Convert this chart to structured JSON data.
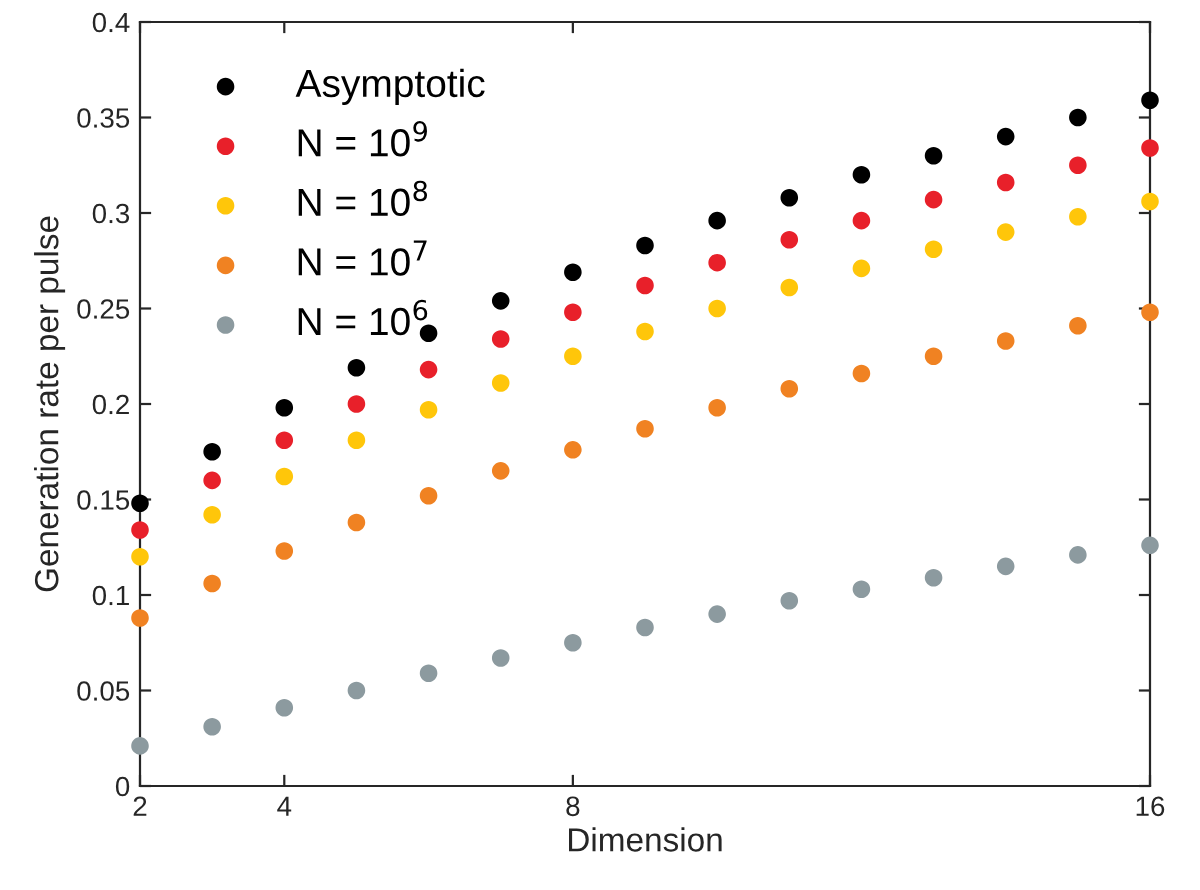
{
  "chart_data": {
    "type": "scatter",
    "xlabel": "Dimension",
    "ylabel": "Generation rate per pulse",
    "x": [
      2,
      3,
      4,
      5,
      6,
      7,
      8,
      9,
      10,
      11,
      12,
      13,
      14,
      15,
      16
    ],
    "series": [
      {
        "name": "Asymptotic",
        "color": "#000000",
        "values": [
          0.148,
          0.175,
          0.198,
          0.219,
          0.237,
          0.254,
          0.269,
          0.283,
          0.296,
          0.308,
          0.32,
          0.33,
          0.34,
          0.35,
          0.359
        ]
      },
      {
        "name": "N = 10$^{9}$",
        "color": "#e8202a",
        "values": [
          0.134,
          0.16,
          0.181,
          0.2,
          0.218,
          0.234,
          0.248,
          0.262,
          0.274,
          0.286,
          0.296,
          0.307,
          0.316,
          0.325,
          0.334
        ]
      },
      {
        "name": "N = 10$^{8}$",
        "color": "#ffc60a",
        "values": [
          0.12,
          0.142,
          0.162,
          0.181,
          0.197,
          0.211,
          0.225,
          0.238,
          0.25,
          0.261,
          0.271,
          0.281,
          0.29,
          0.298,
          0.306
        ]
      },
      {
        "name": "N = 10$^{7}$",
        "color": "#f08222",
        "values": [
          0.088,
          0.106,
          0.123,
          0.138,
          0.152,
          0.165,
          0.176,
          0.187,
          0.198,
          0.208,
          0.216,
          0.225,
          0.233,
          0.241,
          0.248
        ]
      },
      {
        "name": "N = 10$^{6}$",
        "color": "#8c9a9f",
        "values": [
          0.021,
          0.031,
          0.041,
          0.05,
          0.059,
          0.067,
          0.075,
          0.083,
          0.09,
          0.097,
          0.103,
          0.109,
          0.115,
          0.121,
          0.126
        ]
      }
    ],
    "xlim": [
      2,
      16
    ],
    "xticks": [
      2,
      4,
      8,
      16
    ],
    "ylim": [
      0,
      0.4
    ],
    "yticks": [
      0,
      0.05,
      0.1,
      0.15,
      0.2,
      0.25,
      0.3,
      0.35,
      0.4
    ],
    "grid": false,
    "legend": "top left",
    "marker": "circle"
  }
}
